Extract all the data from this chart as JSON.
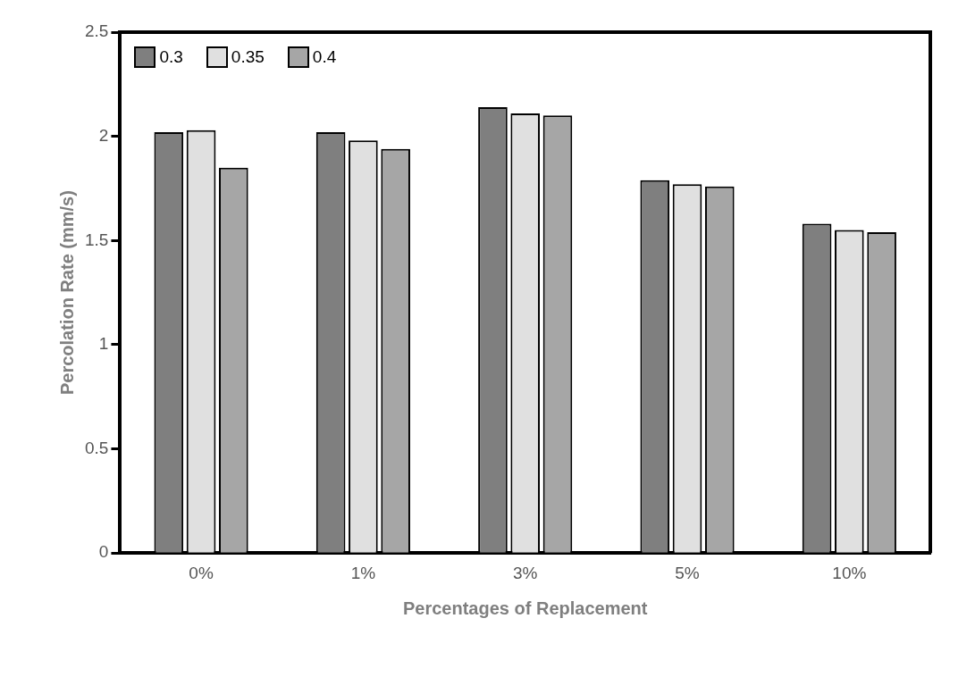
{
  "chart_data": {
    "type": "bar",
    "xlabel": "Percentages of Replacement",
    "ylabel": "Percolation Rate (mm/s)",
    "categories": [
      "0%",
      "1%",
      "3%",
      "5%",
      "10%"
    ],
    "series": [
      {
        "name": "0.3",
        "color": "#7f7f7f",
        "values": [
          2.02,
          2.02,
          2.14,
          1.79,
          1.58
        ]
      },
      {
        "name": "0.35",
        "color": "#e0e0e0",
        "values": [
          2.03,
          1.98,
          2.11,
          1.77,
          1.55
        ]
      },
      {
        "name": "0.4",
        "color": "#a6a6a6",
        "values": [
          1.85,
          1.94,
          2.1,
          1.76,
          1.54
        ]
      }
    ],
    "ylim": [
      0,
      2.5
    ],
    "yticks": [
      0,
      0.5,
      1,
      1.5,
      2,
      2.5
    ],
    "grid": false,
    "legend": "top left"
  }
}
